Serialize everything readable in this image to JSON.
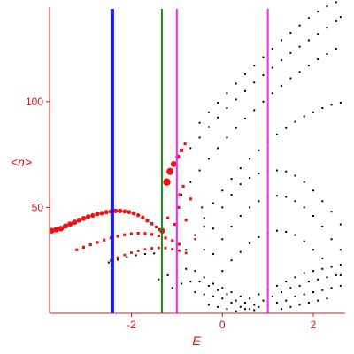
{
  "chart_data": {
    "type": "scatter",
    "title": "",
    "xlabel": "E",
    "ylabel": "<n>",
    "xlim": [
      -3.8,
      2.7
    ],
    "ylim": [
      0,
      148
    ],
    "x_ticks": [
      -2,
      0,
      2
    ],
    "y_ticks": [
      50,
      100
    ],
    "x_tick_labels": [
      "-2",
      "0",
      "2"
    ],
    "y_tick_labels": [
      "50",
      "100"
    ],
    "grid": false,
    "colors": {
      "axis": "#ee1111",
      "tick_text": "#ee1111",
      "red_points": "#ee1111",
      "black_points": "#000000",
      "blue_line": "#1a1aff",
      "green_line": "#118811",
      "magenta_line": "#ff22ff"
    },
    "vertical_lines": [
      {
        "x": -2.42,
        "color": "blue"
      },
      {
        "x": -1.33,
        "color": "green"
      },
      {
        "x": -1.0,
        "color": "magenta"
      },
      {
        "x": 1.0,
        "color": "magenta"
      }
    ],
    "red_points": {
      "description_of_value": "E vs <n>, marker size varies",
      "points": [
        [
          -3.75,
          39.0,
          3.2
        ],
        [
          -3.65,
          39.5,
          3.2
        ],
        [
          -3.55,
          40.0,
          3.2
        ],
        [
          -3.45,
          41.2,
          3.0
        ],
        [
          -3.35,
          42.1,
          3.0
        ],
        [
          -3.25,
          43.0,
          3.0
        ],
        [
          -3.15,
          44.0,
          2.8
        ],
        [
          -3.05,
          44.8,
          2.8
        ],
        [
          -2.95,
          45.6,
          2.8
        ],
        [
          -2.85,
          46.2,
          2.6
        ],
        [
          -2.75,
          46.9,
          2.6
        ],
        [
          -2.65,
          47.3,
          2.6
        ],
        [
          -2.55,
          47.8,
          2.6
        ],
        [
          -2.45,
          48.1,
          2.6
        ],
        [
          -2.35,
          48.4,
          2.6
        ],
        [
          -2.25,
          48.4,
          2.6
        ],
        [
          -2.15,
          48.1,
          2.4
        ],
        [
          -2.05,
          47.8,
          2.4
        ],
        [
          -1.95,
          47.2,
          2.4
        ],
        [
          -1.85,
          46.3,
          2.2
        ],
        [
          -1.75,
          45.2,
          2.2
        ],
        [
          -1.65,
          43.8,
          2.0
        ],
        [
          -1.55,
          42.3,
          1.8
        ],
        [
          -1.45,
          40.8,
          1.6
        ],
        [
          -1.38,
          39.5,
          1.6
        ],
        [
          -3.2,
          30.0,
          1.6
        ],
        [
          -3.05,
          31.2,
          1.6
        ],
        [
          -2.9,
          32.4,
          1.6
        ],
        [
          -2.75,
          33.5,
          1.6
        ],
        [
          -2.6,
          34.6,
          1.6
        ],
        [
          -2.45,
          35.6,
          1.6
        ],
        [
          -2.3,
          36.4,
          1.6
        ],
        [
          -2.15,
          37.1,
          1.6
        ],
        [
          -2.0,
          37.6,
          1.6
        ],
        [
          -1.85,
          37.8,
          1.6
        ],
        [
          -1.7,
          37.7,
          1.6
        ],
        [
          -1.55,
          37.3,
          1.6
        ],
        [
          -1.4,
          36.6,
          1.6
        ],
        [
          -1.25,
          35.6,
          1.6
        ],
        [
          -1.1,
          34.3,
          1.6
        ],
        [
          -0.95,
          32.6,
          1.6
        ],
        [
          -2.45,
          25.0,
          1.4
        ],
        [
          -2.3,
          26.3,
          1.4
        ],
        [
          -2.15,
          27.5,
          1.4
        ],
        [
          -2.0,
          28.6,
          1.4
        ],
        [
          -1.85,
          29.5,
          1.4
        ],
        [
          -1.7,
          30.2,
          1.4
        ],
        [
          -1.55,
          30.7,
          1.4
        ],
        [
          -1.4,
          30.9,
          1.4
        ],
        [
          -1.25,
          30.8,
          1.4
        ],
        [
          -1.1,
          30.3,
          1.4
        ],
        [
          -0.95,
          29.6,
          1.4
        ],
        [
          -0.8,
          28.5,
          1.4
        ],
        [
          -1.22,
          62.0,
          4.2
        ],
        [
          -1.15,
          67.0,
          4.0
        ],
        [
          -1.07,
          70.5,
          3.4
        ],
        [
          -0.98,
          74.0,
          2.6
        ],
        [
          -0.9,
          77.0,
          2.0
        ],
        [
          -0.82,
          80.0,
          1.6
        ],
        [
          -1.32,
          39.0,
          3.2
        ],
        [
          -0.96,
          50.0,
          1.6
        ],
        [
          -0.94,
          56.0,
          1.6
        ],
        [
          -0.86,
          60.0,
          1.6
        ],
        [
          -0.7,
          54.0,
          1.6
        ],
        [
          -0.8,
          44.0,
          1.6
        ],
        [
          -0.45,
          50.0,
          1.2
        ],
        [
          -0.4,
          41.0,
          1.2
        ],
        [
          -0.6,
          35.0,
          1.2
        ],
        [
          -1.2,
          45.0,
          1.6
        ],
        [
          -1.05,
          42.0,
          1.6
        ]
      ]
    },
    "black_points": {
      "points": [
        [
          -2.5,
          24.0
        ],
        [
          -2.3,
          25.3
        ],
        [
          -2.1,
          26.5
        ],
        [
          -1.9,
          27.4
        ],
        [
          -1.7,
          28.0
        ],
        [
          -1.5,
          28.3
        ],
        [
          -0.8,
          30.0
        ],
        [
          -0.6,
          37.0
        ],
        [
          -0.4,
          45.0
        ],
        [
          -0.2,
          52.0
        ],
        [
          0.0,
          58.0
        ],
        [
          0.2,
          63.5
        ],
        [
          0.4,
          68.5
        ],
        [
          0.6,
          73.0
        ],
        [
          0.8,
          77.0
        ],
        [
          1.0,
          81.0
        ],
        [
          1.2,
          84.5
        ],
        [
          1.4,
          87.5
        ],
        [
          1.6,
          90.5
        ],
        [
          1.8,
          93.0
        ],
        [
          2.0,
          95.0
        ],
        [
          2.2,
          97.0
        ],
        [
          2.4,
          98.5
        ],
        [
          2.6,
          99.5
        ],
        [
          -0.9,
          56.0
        ],
        [
          -0.7,
          62.0
        ],
        [
          -0.5,
          67.5
        ],
        [
          -0.3,
          73.0
        ],
        [
          -0.1,
          78.0
        ],
        [
          0.1,
          83.0
        ],
        [
          0.3,
          87.5
        ],
        [
          0.5,
          92.0
        ],
        [
          0.7,
          96.0
        ],
        [
          0.9,
          100.0
        ],
        [
          1.1,
          104.0
        ],
        [
          1.3,
          107.5
        ],
        [
          1.5,
          111.0
        ],
        [
          1.7,
          114.0
        ],
        [
          1.9,
          117.0
        ],
        [
          2.1,
          120.0
        ],
        [
          2.3,
          122.5
        ],
        [
          2.5,
          125.0
        ],
        [
          -0.7,
          78.0
        ],
        [
          -0.5,
          83.0
        ],
        [
          -0.3,
          88.0
        ],
        [
          -0.1,
          92.5
        ],
        [
          0.1,
          97.0
        ],
        [
          0.3,
          101.0
        ],
        [
          0.5,
          105.0
        ],
        [
          0.7,
          109.0
        ],
        [
          0.9,
          112.5
        ],
        [
          1.1,
          116.0
        ],
        [
          1.3,
          119.5
        ],
        [
          1.5,
          123.0
        ],
        [
          1.7,
          126.0
        ],
        [
          1.9,
          129.0
        ],
        [
          2.1,
          132.0
        ],
        [
          2.3,
          135.0
        ],
        [
          2.5,
          138.0
        ],
        [
          2.6,
          140.0
        ],
        [
          -0.5,
          90.0
        ],
        [
          -0.3,
          95.0
        ],
        [
          -0.1,
          99.5
        ],
        [
          0.1,
          104.0
        ],
        [
          0.3,
          108.5
        ],
        [
          0.5,
          113.0
        ],
        [
          0.7,
          117.0
        ],
        [
          0.9,
          121.0
        ],
        [
          1.1,
          125.0
        ],
        [
          1.3,
          129.0
        ],
        [
          1.5,
          132.5
        ],
        [
          1.7,
          136.0
        ],
        [
          1.9,
          139.5
        ],
        [
          2.1,
          142.5
        ],
        [
          2.3,
          145.0
        ],
        [
          2.5,
          147.0
        ],
        [
          -0.4,
          30.0
        ],
        [
          -0.2,
          40.0
        ],
        [
          0.0,
          50.0
        ],
        [
          0.2,
          56.0
        ],
        [
          0.4,
          61.0
        ],
        [
          0.6,
          64.0
        ],
        [
          0.8,
          66.0
        ],
        [
          1.0,
          67.0
        ],
        [
          1.2,
          67.5
        ],
        [
          1.4,
          67.0
        ],
        [
          1.6,
          65.0
        ],
        [
          1.8,
          62.0
        ],
        [
          2.0,
          58.0
        ],
        [
          2.2,
          53.0
        ],
        [
          2.4,
          48.0
        ],
        [
          2.6,
          42.0
        ],
        [
          -0.2,
          28.0
        ],
        [
          0.0,
          35.0
        ],
        [
          0.2,
          41.0
        ],
        [
          0.4,
          46.0
        ],
        [
          0.6,
          50.0
        ],
        [
          0.8,
          53.0
        ],
        [
          1.0,
          55.0
        ],
        [
          1.2,
          55.5
        ],
        [
          1.4,
          55.0
        ],
        [
          1.6,
          53.0
        ],
        [
          1.8,
          50.0
        ],
        [
          2.0,
          46.0
        ],
        [
          2.2,
          41.0
        ],
        [
          2.4,
          35.0
        ],
        [
          2.6,
          30.0
        ],
        [
          0.0,
          20.0
        ],
        [
          0.2,
          25.0
        ],
        [
          0.4,
          29.0
        ],
        [
          0.6,
          33.0
        ],
        [
          0.8,
          36.0
        ],
        [
          1.0,
          38.0
        ],
        [
          1.2,
          39.0
        ],
        [
          1.4,
          38.5
        ],
        [
          1.6,
          37.0
        ],
        [
          1.8,
          34.0
        ],
        [
          2.0,
          30.0
        ],
        [
          2.2,
          26.0
        ],
        [
          2.4,
          22.0
        ],
        [
          2.6,
          18.0
        ],
        [
          -1.4,
          16.0
        ],
        [
          -1.2,
          18.0
        ],
        [
          -1.0,
          20.0
        ],
        [
          -0.8,
          21.0
        ],
        [
          -0.6,
          20.0
        ],
        [
          -0.4,
          17.0
        ],
        [
          -0.2,
          14.0
        ],
        [
          0.0,
          12.0
        ],
        [
          0.2,
          10.0
        ],
        [
          0.4,
          8.0
        ],
        [
          0.6,
          7.0
        ],
        [
          0.8,
          9.0
        ],
        [
          1.0,
          11.0
        ],
        [
          1.2,
          13.0
        ],
        [
          1.4,
          15.0
        ],
        [
          1.6,
          17.0
        ],
        [
          1.8,
          19.0
        ],
        [
          2.0,
          20.0
        ],
        [
          2.2,
          21.0
        ],
        [
          2.4,
          22.0
        ],
        [
          2.6,
          23.0
        ],
        [
          -1.1,
          12.0
        ],
        [
          -0.9,
          14.0
        ],
        [
          -0.7,
          15.0
        ],
        [
          -0.5,
          15.0
        ],
        [
          -0.3,
          13.0
        ],
        [
          -0.1,
          11.0
        ],
        [
          0.1,
          9.0
        ],
        [
          0.3,
          6.0
        ],
        [
          0.5,
          5.0
        ],
        [
          0.7,
          4.0
        ],
        [
          0.9,
          6.0
        ],
        [
          1.1,
          8.0
        ],
        [
          1.3,
          10.0
        ],
        [
          1.5,
          12.0
        ],
        [
          1.7,
          13.0
        ],
        [
          1.9,
          15.0
        ],
        [
          2.1,
          16.0
        ],
        [
          2.3,
          17.0
        ],
        [
          2.5,
          18.0
        ],
        [
          -0.6,
          10.0
        ],
        [
          -0.4,
          9.0
        ],
        [
          -0.2,
          8.0
        ],
        [
          0.0,
          7.0
        ],
        [
          0.2,
          5.0
        ],
        [
          0.4,
          3.0
        ],
        [
          0.6,
          2.0
        ],
        [
          0.8,
          3.0
        ],
        [
          1.0,
          4.0
        ],
        [
          1.2,
          5.0
        ],
        [
          1.4,
          6.0
        ],
        [
          1.6,
          8.0
        ],
        [
          1.8,
          9.0
        ],
        [
          2.0,
          10.0
        ],
        [
          2.2,
          11.0
        ],
        [
          2.4,
          12.0
        ],
        [
          2.6,
          13.0
        ],
        [
          -0.3,
          4.0
        ],
        [
          -0.1,
          3.0
        ],
        [
          0.1,
          2.0
        ],
        [
          0.3,
          1.0
        ],
        [
          0.5,
          2.0
        ],
        [
          0.7,
          1.5
        ],
        [
          1.3,
          2.0
        ],
        [
          1.5,
          3.0
        ],
        [
          1.7,
          4.0
        ],
        [
          1.9,
          5.0
        ],
        [
          2.1,
          6.0
        ],
        [
          2.3,
          7.0
        ]
      ]
    }
  }
}
